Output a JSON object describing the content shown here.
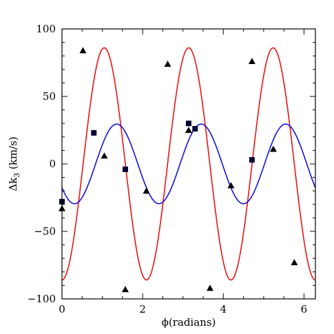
{
  "chart_data": {
    "type": "scatter",
    "title": "",
    "xlabel": "ϕ(radians)",
    "ylabel": "Δk",
    "ylabel_sub": "3",
    "ylabel_units": " (km/s)",
    "xlim": [
      0,
      6.283
    ],
    "ylim": [
      -100,
      100
    ],
    "grid": false,
    "x_ticks": [
      0,
      2,
      4,
      6
    ],
    "y_ticks": [
      -100,
      -50,
      0,
      50,
      100
    ],
    "x_tick_labels": [
      "0",
      "2",
      "4",
      "6"
    ],
    "y_tick_labels": [
      "−100",
      "−50",
      "0",
      "50",
      "100"
    ],
    "series": [
      {
        "kind": "curve",
        "color": "#ee1111",
        "amplitude": 86,
        "frequency": 3,
        "phase": -1.571
      },
      {
        "kind": "curve",
        "color": "#1111dd",
        "amplitude": 29.5,
        "frequency": 3,
        "phase": -2.5
      },
      {
        "kind": "points",
        "marker": "triangle",
        "color": "#000000",
        "x": [
          0.0,
          0.52,
          1.05,
          1.57,
          2.09,
          2.62,
          3.14,
          3.67,
          4.19,
          4.71,
          5.24,
          5.76
        ],
        "y": [
          -33,
          84,
          6,
          -93,
          -20,
          74,
          25,
          -92,
          -16,
          76,
          11,
          -73
        ]
      },
      {
        "kind": "points",
        "marker": "square",
        "color": "#000033",
        "x": [
          0.0,
          0.79,
          1.57,
          3.14,
          3.3,
          4.71
        ],
        "y": [
          -28,
          23,
          -4,
          30,
          26,
          3
        ]
      }
    ]
  }
}
